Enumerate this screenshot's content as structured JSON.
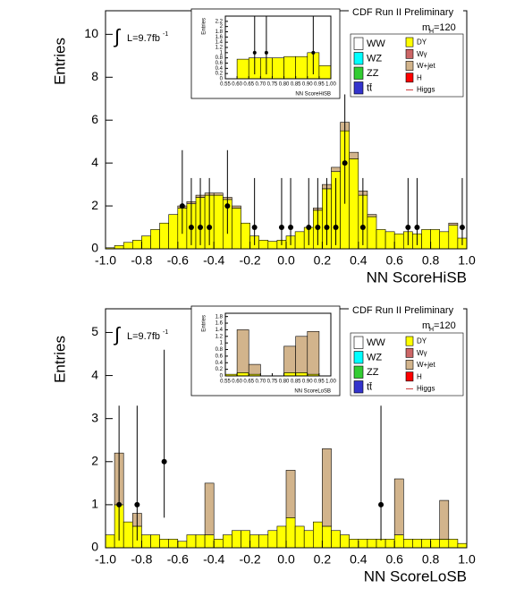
{
  "chart_data": [
    {
      "type": "histogram",
      "title": "CDF Run II Preliminary",
      "xlabel": "NN ScoreHiSB",
      "ylabel": "Entries",
      "integral": "∫",
      "lumi": "L=9.7fb",
      "lumi_sup": "-1",
      "mass": "m",
      "mass_sub": "H",
      "mass_value": "=120",
      "legend": true,
      "bins": [
        -1,
        -0.95,
        -0.9,
        -0.85,
        -0.8,
        -0.75,
        -0.7,
        -0.65,
        -0.6,
        -0.55,
        -0.5,
        -0.45,
        -0.4,
        -0.35,
        -0.3,
        -0.25,
        -0.2,
        -0.15,
        -0.1,
        -0.05,
        0,
        0.05,
        0.1,
        0.15,
        0.2,
        0.25,
        0.3,
        0.35,
        0.4,
        0.45,
        0.5,
        0.55,
        0.6,
        0.65,
        0.7,
        0.75,
        0.8,
        0.85,
        0.9,
        0.95,
        1
      ],
      "series": [
        {
          "name": "WW",
          "color": "#ffffff"
        },
        {
          "name": "WZ",
          "color": "#00ffff"
        },
        {
          "name": "ZZ",
          "color": "#33cc33"
        },
        {
          "name": "tt̄",
          "color": "#3333cc"
        },
        {
          "name": "DY",
          "color": "#ffff00",
          "values": [
            0.05,
            0.15,
            0.3,
            0.4,
            0.6,
            0.9,
            1.2,
            1.6,
            1.9,
            2.1,
            2.4,
            2.5,
            2.5,
            2.3,
            1.9,
            1.2,
            0.6,
            0.4,
            0.35,
            0.4,
            0.6,
            0.8,
            1.0,
            1.8,
            2.8,
            3.6,
            5.5,
            4.2,
            2.5,
            1.5,
            0.9,
            0.8,
            0.7,
            0.8,
            0.7,
            0.9,
            0.9,
            0.8,
            1.1,
            0.5
          ]
        },
        {
          "name": "Wγ",
          "color": "#cc6666"
        },
        {
          "name": "W+jet",
          "color": "#d2b48c",
          "values": [
            0,
            0,
            0,
            0,
            0,
            0,
            0,
            0,
            0.1,
            0.1,
            0.1,
            0.1,
            0.1,
            0.1,
            0.1,
            0,
            0,
            0,
            0,
            0,
            0,
            0,
            0,
            0.1,
            0.2,
            0.2,
            0.4,
            0.3,
            0.2,
            0.1,
            0,
            0,
            0,
            0,
            0,
            0,
            0,
            0,
            0.1,
            0
          ]
        },
        {
          "name": "H",
          "color": "#ff0000"
        },
        {
          "name": "Higgs",
          "color": "#cc3333"
        }
      ],
      "data": {
        "x": [
          -0.575,
          -0.525,
          -0.475,
          -0.425,
          -0.325,
          -0.175,
          -0.025,
          0.025,
          0.125,
          0.175,
          0.225,
          0.275,
          0.325,
          0.425,
          0.675,
          0.725,
          0.975
        ],
        "y": [
          2,
          1,
          1,
          1,
          2,
          1,
          1,
          1,
          1,
          1,
          1,
          1,
          4,
          1,
          1,
          1,
          1
        ],
        "yerr_low": [
          1.3,
          0.83,
          0.83,
          0.83,
          1.3,
          0.83,
          0.83,
          0.83,
          0.83,
          0.83,
          0.83,
          0.83,
          1.9,
          0.83,
          0.83,
          0.83,
          0.83
        ],
        "yerr_high": [
          2.6,
          2.3,
          2.3,
          2.3,
          2.6,
          2.3,
          2.3,
          2.3,
          2.3,
          2.3,
          2.3,
          2.3,
          3.2,
          2.3,
          2.3,
          2.3,
          2.3
        ]
      },
      "xlim": [
        -1,
        1
      ],
      "ylim": [
        0,
        11.1
      ],
      "xticks": [
        {
          "value": -1,
          "label": "-1.0"
        },
        -0.8,
        -0.6,
        -0.4,
        -0.2,
        {
          "value": 0,
          "label": "0.0"
        },
        0.2,
        0.4,
        0.6,
        0.8,
        {
          "value": 1,
          "label": "1.0"
        }
      ],
      "yticks": [
        0,
        2,
        4,
        6,
        8,
        10
      ]
    },
    {
      "type": "histogram",
      "xlabel": "NN ScoreHiSB",
      "ylabel": "Entries",
      "bins": [
        0.55,
        0.6,
        0.65,
        0.7,
        0.75,
        0.8,
        0.85,
        0.9,
        0.95,
        1
      ],
      "series": [
        {
          "name": "DY",
          "color": "#ffff00",
          "values": [
            0,
            0.75,
            0.8,
            0.8,
            0.8,
            0.85,
            0.85,
            1.0,
            0.5
          ]
        }
      ],
      "data": {
        "x": [
          0.675,
          0.725,
          0.925
        ],
        "y": [
          1,
          1,
          1
        ],
        "yerr_low": [
          0.83,
          0.83,
          0.83
        ],
        "yerr_high": [
          2.3,
          2.3,
          2.3
        ]
      },
      "xlim": [
        0.55,
        1
      ],
      "ylim": [
        0,
        2.4
      ],
      "xticks": [
        0.55,
        {
          "value": 0.6,
          "label": "0.60"
        },
        0.65,
        {
          "value": 0.7,
          "label": "0.70"
        },
        0.75,
        {
          "value": 0.8,
          "label": "0.80"
        },
        0.85,
        {
          "value": 0.9,
          "label": "0.90"
        },
        0.95,
        {
          "value": 1,
          "label": "1.00"
        }
      ],
      "yticks": [
        0,
        0.2,
        0.4,
        0.6,
        0.8,
        1,
        1.2,
        1.4,
        1.6,
        1.8,
        2,
        2.2
      ]
    },
    {
      "type": "histogram",
      "title": "CDF Run II Preliminary",
      "xlabel": "NN ScoreLoSB",
      "ylabel": "Entries",
      "integral": "∫",
      "lumi": "L=9.7fb",
      "lumi_sup": "-1",
      "mass": "m",
      "mass_sub": "H",
      "mass_value": "=120",
      "legend": true,
      "bins": [
        -1,
        -0.95,
        -0.9,
        -0.85,
        -0.8,
        -0.75,
        -0.7,
        -0.65,
        -0.6,
        -0.55,
        -0.5,
        -0.45,
        -0.4,
        -0.35,
        -0.3,
        -0.25,
        -0.2,
        -0.15,
        -0.1,
        -0.05,
        0,
        0.05,
        0.1,
        0.15,
        0.2,
        0.25,
        0.3,
        0.35,
        0.4,
        0.45,
        0.5,
        0.55,
        0.6,
        0.65,
        0.7,
        0.75,
        0.8,
        0.85,
        0.9,
        0.95,
        1
      ],
      "series": [
        {
          "name": "WW",
          "color": "#ffffff"
        },
        {
          "name": "WZ",
          "color": "#00ffff"
        },
        {
          "name": "ZZ",
          "color": "#33cc33"
        },
        {
          "name": "tt̄",
          "color": "#3333cc"
        },
        {
          "name": "DY",
          "color": "#ffff00",
          "values": [
            0.3,
            1.0,
            0.6,
            0.5,
            0.3,
            0.3,
            0.2,
            0.2,
            0.15,
            0.3,
            0.3,
            0.3,
            0.2,
            0.3,
            0.4,
            0.4,
            0.3,
            0.3,
            0.4,
            0.5,
            0.7,
            0.5,
            0.4,
            0.6,
            0.5,
            0.4,
            0.3,
            0.2,
            0.2,
            0.2,
            0.2,
            0.2,
            0.3,
            0.2,
            0.2,
            0.2,
            0.2,
            0.2,
            0.2,
            0.1
          ]
        },
        {
          "name": "Wγ",
          "color": "#cc6666"
        },
        {
          "name": "W+jet",
          "color": "#d2b48c",
          "values": [
            0,
            1.2,
            0,
            0.3,
            0,
            0,
            0,
            0,
            0,
            0,
            0,
            1.2,
            0,
            0,
            0,
            0,
            0,
            0,
            0,
            0,
            1.1,
            0,
            0,
            0,
            1.8,
            0,
            0,
            0,
            0,
            0,
            0,
            0,
            1.3,
            0,
            0,
            0,
            0,
            0.9,
            0,
            0
          ]
        },
        {
          "name": "H",
          "color": "#ff0000"
        },
        {
          "name": "Higgs",
          "color": "#cc3333"
        }
      ],
      "data": {
        "x": [
          -0.925,
          -0.825,
          -0.675,
          0.525
        ],
        "y": [
          1,
          1,
          2,
          1
        ],
        "yerr_low": [
          0.83,
          0.83,
          1.3,
          0.83
        ],
        "yerr_high": [
          2.3,
          2.3,
          2.6,
          2.3
        ]
      },
      "xlim": [
        -1,
        1
      ],
      "ylim": [
        0,
        5.55
      ],
      "xticks": [
        {
          "value": -1,
          "label": "-1.0"
        },
        -0.8,
        -0.6,
        -0.4,
        -0.2,
        {
          "value": 0,
          "label": "0.0"
        },
        0.2,
        0.4,
        0.6,
        0.8,
        {
          "value": 1,
          "label": "1.0"
        }
      ],
      "yticks": [
        0,
        1,
        2,
        3,
        4,
        5
      ]
    },
    {
      "type": "histogram",
      "xlabel": "NN ScoreLoSB",
      "ylabel": "Entries",
      "bins": [
        0.55,
        0.6,
        0.65,
        0.7,
        0.75,
        0.8,
        0.85,
        0.9,
        0.95,
        1
      ],
      "series": [
        {
          "name": "DY",
          "color": "#ffff00",
          "values": [
            0.05,
            0.1,
            0.05,
            0,
            0,
            0.1,
            0.1,
            0.05,
            0
          ]
        },
        {
          "name": "W+jet",
          "color": "#d2b48c",
          "values": [
            0,
            1.3,
            0.3,
            0,
            0,
            0.8,
            1.1,
            1.3,
            0
          ]
        }
      ],
      "xlim": [
        0.55,
        1
      ],
      "ylim": [
        0,
        1.9
      ],
      "xticks": [
        0.55,
        {
          "value": 0.6,
          "label": "0.60"
        },
        0.65,
        {
          "value": 0.7,
          "label": "0.70"
        },
        0.75,
        {
          "value": 0.8,
          "label": "0.80"
        },
        0.85,
        {
          "value": 0.9,
          "label": "0.90"
        },
        0.95,
        {
          "value": 1,
          "label": "1.00"
        }
      ],
      "yticks": [
        0,
        0.2,
        0.4,
        0.6,
        0.8,
        1,
        1.2,
        1.4,
        1.6,
        1.8
      ]
    }
  ]
}
